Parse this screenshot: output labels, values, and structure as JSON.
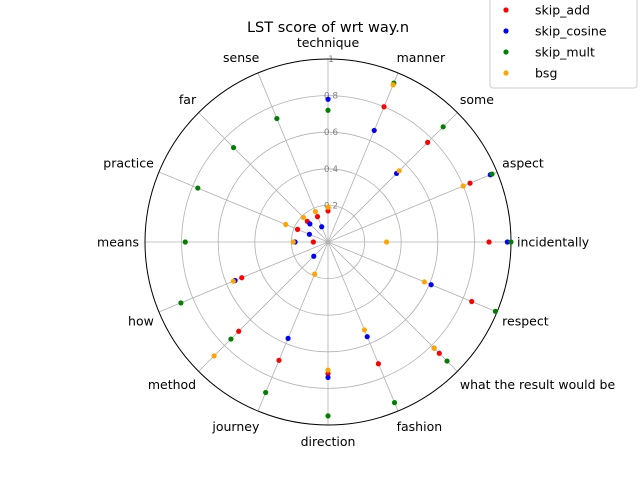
{
  "chart_data": {
    "type": "scatter",
    "projection": "polar",
    "title": "LST score of wrt way.n",
    "categories": [
      "technique",
      "manner",
      "some",
      "aspect",
      "incidentally",
      "respect",
      "what the result would be",
      "fashion",
      "direction",
      "journey",
      "method",
      "how",
      "means",
      "practice",
      "far",
      "sense"
    ],
    "rlim": [
      0,
      1
    ],
    "rticks": [
      "0.2",
      "0.4",
      "0.6",
      "0.8",
      "1"
    ],
    "grid": true,
    "legend_position": "top-right",
    "series": [
      {
        "name": "skip_add",
        "color": "#ff0000",
        "values": [
          0.17,
          0.8,
          0.77,
          0.84,
          0.88,
          0.85,
          0.86,
          0.72,
          0.72,
          0.7,
          0.69,
          0.51,
          0.08,
          0.18,
          0.16,
          0.15
        ]
      },
      {
        "name": "skip_cosine",
        "color": "#0000ff",
        "values": [
          0.78,
          0.66,
          0.53,
          0.96,
          0.98,
          0.61,
          0.82,
          0.56,
          0.74,
          0.57,
          0.11,
          0.55,
          0.18,
          0.11,
          0.14,
          0.09
        ]
      },
      {
        "name": "skip_mult",
        "color": "#008000",
        "values": [
          0.72,
          0.94,
          0.89,
          0.97,
          1.0,
          0.99,
          0.92,
          0.95,
          0.95,
          0.89,
          0.75,
          0.87,
          0.78,
          0.77,
          0.73,
          0.73
        ]
      },
      {
        "name": "bsg",
        "color": "#ffa500",
        "values": [
          0.19,
          0.93,
          0.55,
          0.8,
          0.32,
          0.57,
          0.82,
          0.52,
          0.7,
          0.19,
          0.88,
          0.56,
          0.19,
          0.25,
          0.19,
          0.18
        ]
      }
    ]
  }
}
